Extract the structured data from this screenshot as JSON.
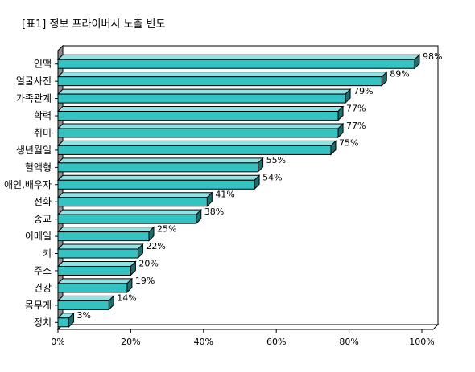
{
  "page": {
    "title": "[표1] 정보 프라이버시 노출 빈도"
  },
  "chart_data": {
    "type": "bar",
    "orientation": "horizontal",
    "style": "3d",
    "title": "[표1] 정보 프라이버시 노출 빈도",
    "xlabel": "",
    "ylabel": "",
    "xlim": [
      0,
      100
    ],
    "x_ticks": [
      "0%",
      "20%",
      "40%",
      "60%",
      "80%",
      "100%"
    ],
    "categories": [
      "인맥",
      "얼굴사진",
      "가족관계",
      "학력",
      "취미",
      "생년월일",
      "혈액형",
      "애인,배우자",
      "전화",
      "종교",
      "이메일",
      "키",
      "주소",
      "건강",
      "몸무게",
      "정치"
    ],
    "values": [
      98,
      89,
      79,
      77,
      77,
      75,
      55,
      54,
      41,
      38,
      25,
      22,
      20,
      19,
      14,
      3
    ],
    "value_labels": [
      "98%",
      "89%",
      "79%",
      "77%",
      "77%",
      "75%",
      "55%",
      "54%",
      "41%",
      "38%",
      "25%",
      "22%",
      "20%",
      "19%",
      "14%",
      "3%"
    ],
    "colors": {
      "bar_front": "#33c3c3",
      "bar_top": "#8fe3e3",
      "bar_side": "#1a6f6f",
      "wall": "#8c8c8c",
      "axis": "#000000"
    },
    "grid": false,
    "legend": "none"
  }
}
